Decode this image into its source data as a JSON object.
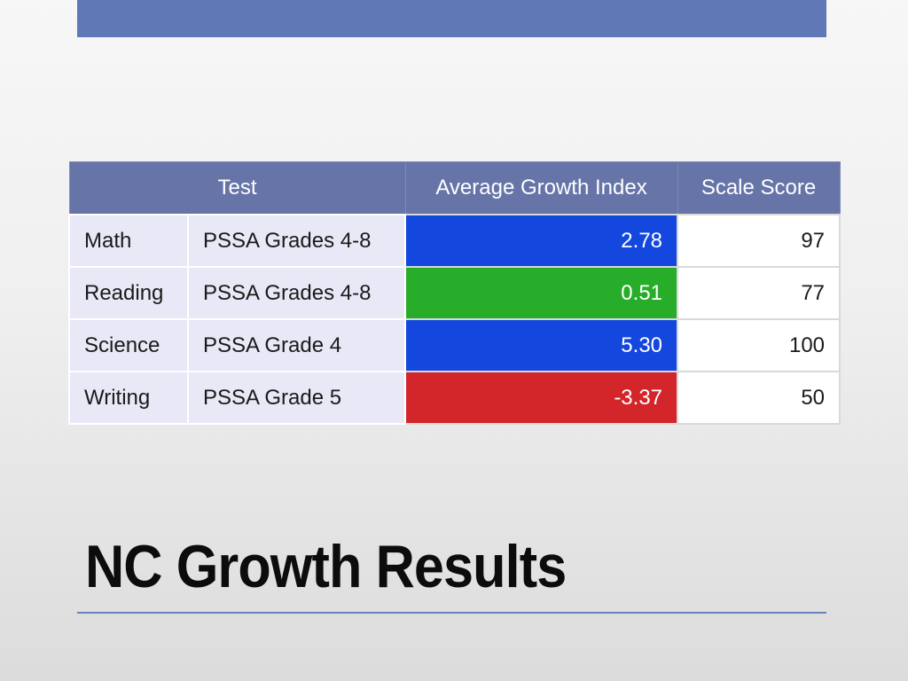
{
  "slide": {
    "title": "NC Growth Results",
    "colors": {
      "top_bar": "#6078b6",
      "title_rule": "#6a82bd",
      "header_bg": "#6674a8",
      "label_bg": "#e8e8f7"
    }
  },
  "table": {
    "headers": {
      "test": "Test",
      "growth": "Average Growth Index",
      "score": "Scale Score"
    },
    "rows": [
      {
        "subject": "Math",
        "test": "PSSA Grades 4-8",
        "growth": "2.78",
        "score": "97",
        "growth_color": "#1447de"
      },
      {
        "subject": "Reading",
        "test": "PSSA Grades 4-8",
        "growth": "0.51",
        "score": "77",
        "growth_color": "#28ad2a"
      },
      {
        "subject": "Science",
        "test": "PSSA Grade 4",
        "growth": "5.30",
        "score": "100",
        "growth_color": "#1447de"
      },
      {
        "subject": "Writing",
        "test": "PSSA Grade 5",
        "growth": "-3.37",
        "score": "50",
        "growth_color": "#d2262b"
      }
    ]
  }
}
